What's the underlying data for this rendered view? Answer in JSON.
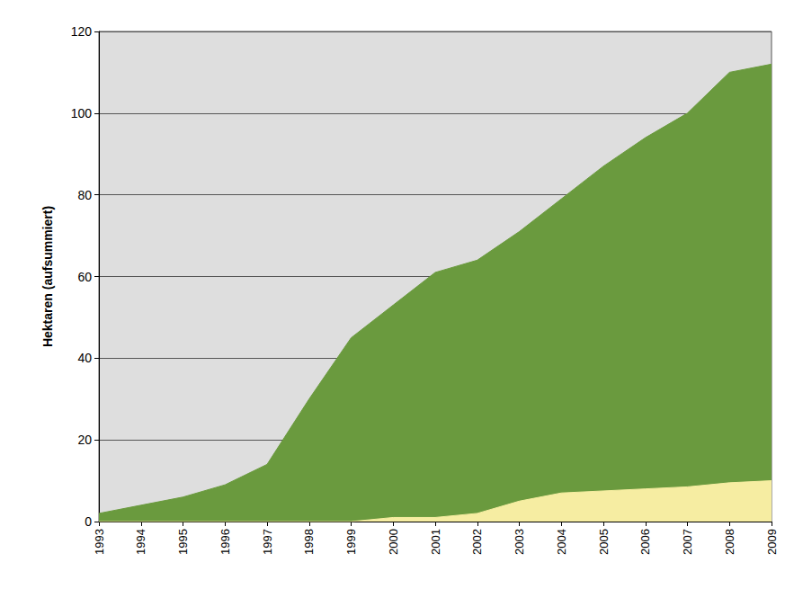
{
  "chart_data": {
    "type": "area",
    "y_label": "Hektaren (aufsummiert)",
    "categories": [
      "1993",
      "1994",
      "1995",
      "1996",
      "1997",
      "1998",
      "1999",
      "2000",
      "2001",
      "2002",
      "2003",
      "2004",
      "2005",
      "2006",
      "2007",
      "2008",
      "2009"
    ],
    "series": [
      {
        "color": "#6a9a3e",
        "values": [
          2,
          4,
          6,
          9,
          14,
          30,
          45,
          53,
          61,
          64,
          71,
          79,
          87,
          94,
          100,
          110,
          112
        ]
      },
      {
        "color": "#f6eda2",
        "values": [
          0,
          0,
          0,
          0,
          0,
          0,
          0,
          1,
          1,
          2,
          5,
          7,
          7.5,
          8,
          8.5,
          9.5,
          10
        ]
      }
    ],
    "ylim": [
      0,
      120
    ],
    "yticks": [
      0,
      20,
      40,
      60,
      80,
      100,
      120
    ],
    "grid": true,
    "stacked": false
  }
}
